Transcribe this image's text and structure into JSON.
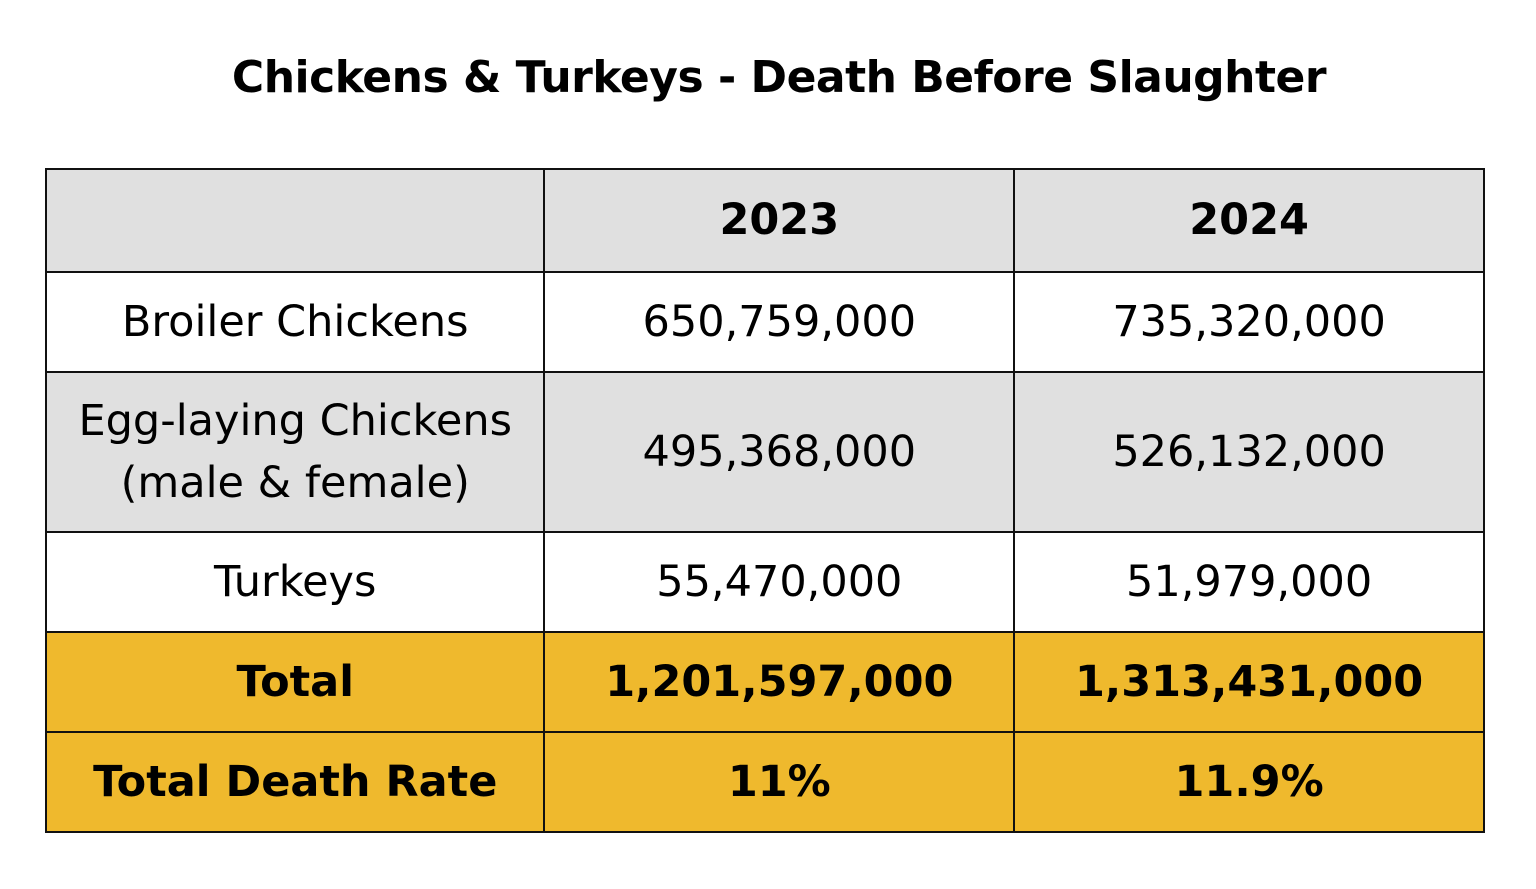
{
  "title": "Chickens & Turkeys - Death Before Slaughter",
  "colors": {
    "header_bg": "#e0e0e0",
    "total_bg": "#efb92d",
    "border": "#111111"
  },
  "table": {
    "headers": [
      "",
      "2023",
      "2024"
    ],
    "rows": [
      {
        "label": "Broiler Chickens",
        "label2": "",
        "v2023": "650,759,000",
        "v2024": "735,320,000"
      },
      {
        "label": "Egg-laying Chickens",
        "label2": "(male & female)",
        "v2023": "495,368,000",
        "v2024": "526,132,000"
      },
      {
        "label": "Turkeys",
        "label2": "",
        "v2023": "55,470,000",
        "v2024": "51,979,000"
      }
    ],
    "total": {
      "label": "Total",
      "v2023": "1,201,597,000",
      "v2024": "1,313,431,000"
    },
    "death_rate": {
      "label": "Total Death Rate",
      "v2023": "11%",
      "v2024": "11.9%"
    }
  }
}
